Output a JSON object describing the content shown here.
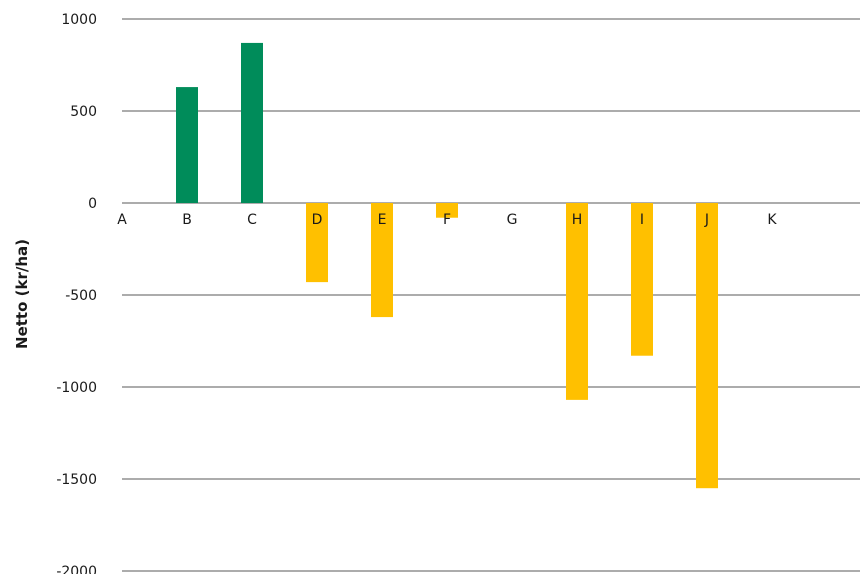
{
  "chart_data": {
    "type": "bar",
    "title": "",
    "xlabel": "",
    "ylabel": "Netto (kr/ha)",
    "categories": [
      "A",
      "B",
      "C",
      "D",
      "E",
      "F",
      "G",
      "H",
      "I",
      "J",
      "K"
    ],
    "values": [
      0,
      630,
      870,
      -430,
      -620,
      -80,
      0,
      -1070,
      -830,
      -1550,
      0
    ],
    "ylim": [
      -2000,
      1000
    ],
    "yticks": [
      1000,
      500,
      0,
      -500,
      -1000,
      -1500,
      -2000
    ],
    "grid": true,
    "legend": "none",
    "colors": {
      "positive": "#008c5a",
      "negative": "#ffc000",
      "gridline": "#595959",
      "text": "#1a1a1a"
    }
  }
}
